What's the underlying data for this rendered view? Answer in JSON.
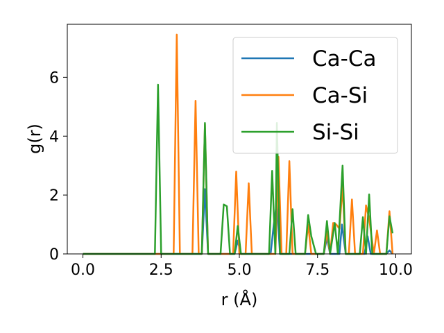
{
  "chart_data": {
    "type": "line",
    "title": "",
    "xlabel": "r (Å)",
    "ylabel": "g(r)",
    "xlim": [
      -0.5,
      10.5
    ],
    "ylim": [
      0,
      7.8
    ],
    "xticks": [
      0.0,
      2.5,
      5.0,
      7.5,
      10.0
    ],
    "xtick_labels": [
      "0.0",
      "2.5",
      "5.0",
      "7.5",
      "10.0"
    ],
    "yticks": [
      0,
      2,
      4,
      6
    ],
    "ytick_labels": [
      "0",
      "2",
      "4",
      "6"
    ],
    "grid": false,
    "legend_position": "top-right",
    "series": [
      {
        "name": "Ca-Ca",
        "color": "#1f77b4",
        "points": [
          [
            0,
            0
          ],
          [
            3.8,
            0
          ],
          [
            3.9,
            2.2
          ],
          [
            4.0,
            0
          ],
          [
            4.85,
            0
          ],
          [
            4.95,
            0.45
          ],
          [
            5.05,
            0
          ],
          [
            6.0,
            0
          ],
          [
            6.1,
            1.0
          ],
          [
            6.2,
            1.75
          ],
          [
            6.3,
            0
          ],
          [
            7.7,
            0
          ],
          [
            7.8,
            0.55
          ],
          [
            7.9,
            0
          ],
          [
            8.2,
            0
          ],
          [
            8.28,
            1.0
          ],
          [
            8.4,
            0
          ],
          [
            9.0,
            0
          ],
          [
            9.1,
            0.6
          ],
          [
            9.2,
            0
          ],
          [
            9.7,
            0
          ],
          [
            9.8,
            0.12
          ],
          [
            9.9,
            0
          ]
        ]
      },
      {
        "name": "Ca-Si",
        "color": "#ff7f0e",
        "points": [
          [
            0,
            0
          ],
          [
            2.9,
            0
          ],
          [
            3.0,
            7.45
          ],
          [
            3.1,
            0
          ],
          [
            3.5,
            0
          ],
          [
            3.6,
            5.2
          ],
          [
            3.7,
            0
          ],
          [
            3.8,
            0
          ],
          [
            3.9,
            4.4
          ],
          [
            4.0,
            0
          ],
          [
            4.8,
            0
          ],
          [
            4.9,
            2.8
          ],
          [
            5.0,
            0
          ],
          [
            5.2,
            0
          ],
          [
            5.3,
            2.4
          ],
          [
            5.4,
            0
          ],
          [
            6.15,
            0
          ],
          [
            6.25,
            3.3
          ],
          [
            6.35,
            0
          ],
          [
            6.5,
            0
          ],
          [
            6.6,
            3.15
          ],
          [
            6.7,
            0
          ],
          [
            7.1,
            0
          ],
          [
            7.2,
            1.0
          ],
          [
            7.3,
            0
          ],
          [
            7.7,
            0
          ],
          [
            7.8,
            0.75
          ],
          [
            7.9,
            0
          ],
          [
            8.0,
            1.05
          ],
          [
            8.1,
            1.0
          ],
          [
            8.2,
            0.85
          ],
          [
            8.3,
            2.3
          ],
          [
            8.4,
            0
          ],
          [
            8.5,
            0
          ],
          [
            8.6,
            1.85
          ],
          [
            8.7,
            0
          ],
          [
            8.95,
            0
          ],
          [
            9.05,
            1.65
          ],
          [
            9.15,
            1.2
          ],
          [
            9.3,
            0
          ],
          [
            9.4,
            0.8
          ],
          [
            9.5,
            0
          ],
          [
            9.7,
            0
          ],
          [
            9.8,
            1.45
          ],
          [
            9.9,
            0
          ]
        ]
      },
      {
        "name": "Si-Si",
        "color": "#2ca02c",
        "points": [
          [
            0,
            0
          ],
          [
            2.3,
            0
          ],
          [
            2.4,
            5.75
          ],
          [
            2.5,
            0
          ],
          [
            3.8,
            0
          ],
          [
            3.9,
            4.45
          ],
          [
            4.0,
            0
          ],
          [
            4.4,
            0
          ],
          [
            4.5,
            1.68
          ],
          [
            4.6,
            1.62
          ],
          [
            4.7,
            0
          ],
          [
            4.85,
            0
          ],
          [
            4.95,
            0.95
          ],
          [
            5.05,
            0
          ],
          [
            5.95,
            0
          ],
          [
            6.05,
            2.82
          ],
          [
            6.15,
            0
          ],
          [
            6.2,
            4.45
          ],
          [
            6.3,
            0
          ],
          [
            6.6,
            0
          ],
          [
            6.7,
            1.52
          ],
          [
            6.8,
            0
          ],
          [
            7.1,
            0
          ],
          [
            7.2,
            1.32
          ],
          [
            7.3,
            0.6
          ],
          [
            7.45,
            0
          ],
          [
            7.7,
            0
          ],
          [
            7.8,
            1.12
          ],
          [
            7.9,
            0
          ],
          [
            8.05,
            1.05
          ],
          [
            8.15,
            0
          ],
          [
            8.3,
            3.0
          ],
          [
            8.4,
            0
          ],
          [
            8.85,
            0
          ],
          [
            8.95,
            1.25
          ],
          [
            9.05,
            0
          ],
          [
            9.15,
            2.02
          ],
          [
            9.25,
            0
          ],
          [
            9.7,
            0
          ],
          [
            9.8,
            1.28
          ],
          [
            9.9,
            0.7
          ]
        ]
      }
    ]
  }
}
